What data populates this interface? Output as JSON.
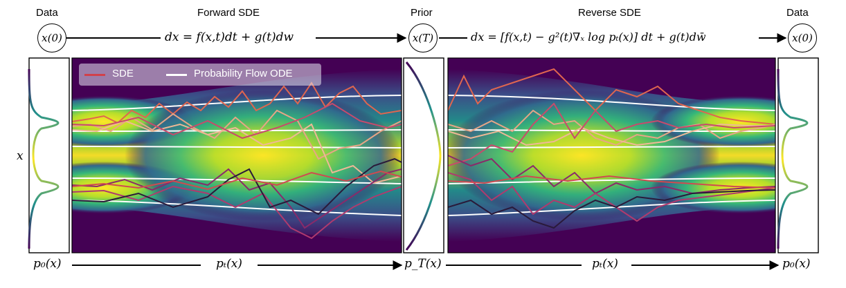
{
  "top": {
    "data_left": "Data",
    "forward_sde": "Forward SDE",
    "prior": "Prior",
    "reverse_sde": "Reverse SDE",
    "data_right": "Data"
  },
  "nodes": {
    "x0_left": "x(0)",
    "xT": "x(T)",
    "x0_right": "x(0)"
  },
  "equations": {
    "forward": "dx = f(x,t)dt + g(t)dw",
    "reverse": "dx = [f(x,t) − g²(t)∇ₓ log pₜ(x)] dt + g(t)dw̄"
  },
  "legend": {
    "sde": "SDE",
    "ode": "Probability Flow ODE"
  },
  "colors": {
    "sde": "#d1404a",
    "ode": "#ffffff"
  },
  "axis": {
    "x_label": "x"
  },
  "bottom": {
    "p0_left": "p₀(x)",
    "pt_forward": "pₜ(x)",
    "pT": "p_T(x)",
    "pt_reverse": "pₜ(x)",
    "p0_right": "p₀(x)"
  }
}
